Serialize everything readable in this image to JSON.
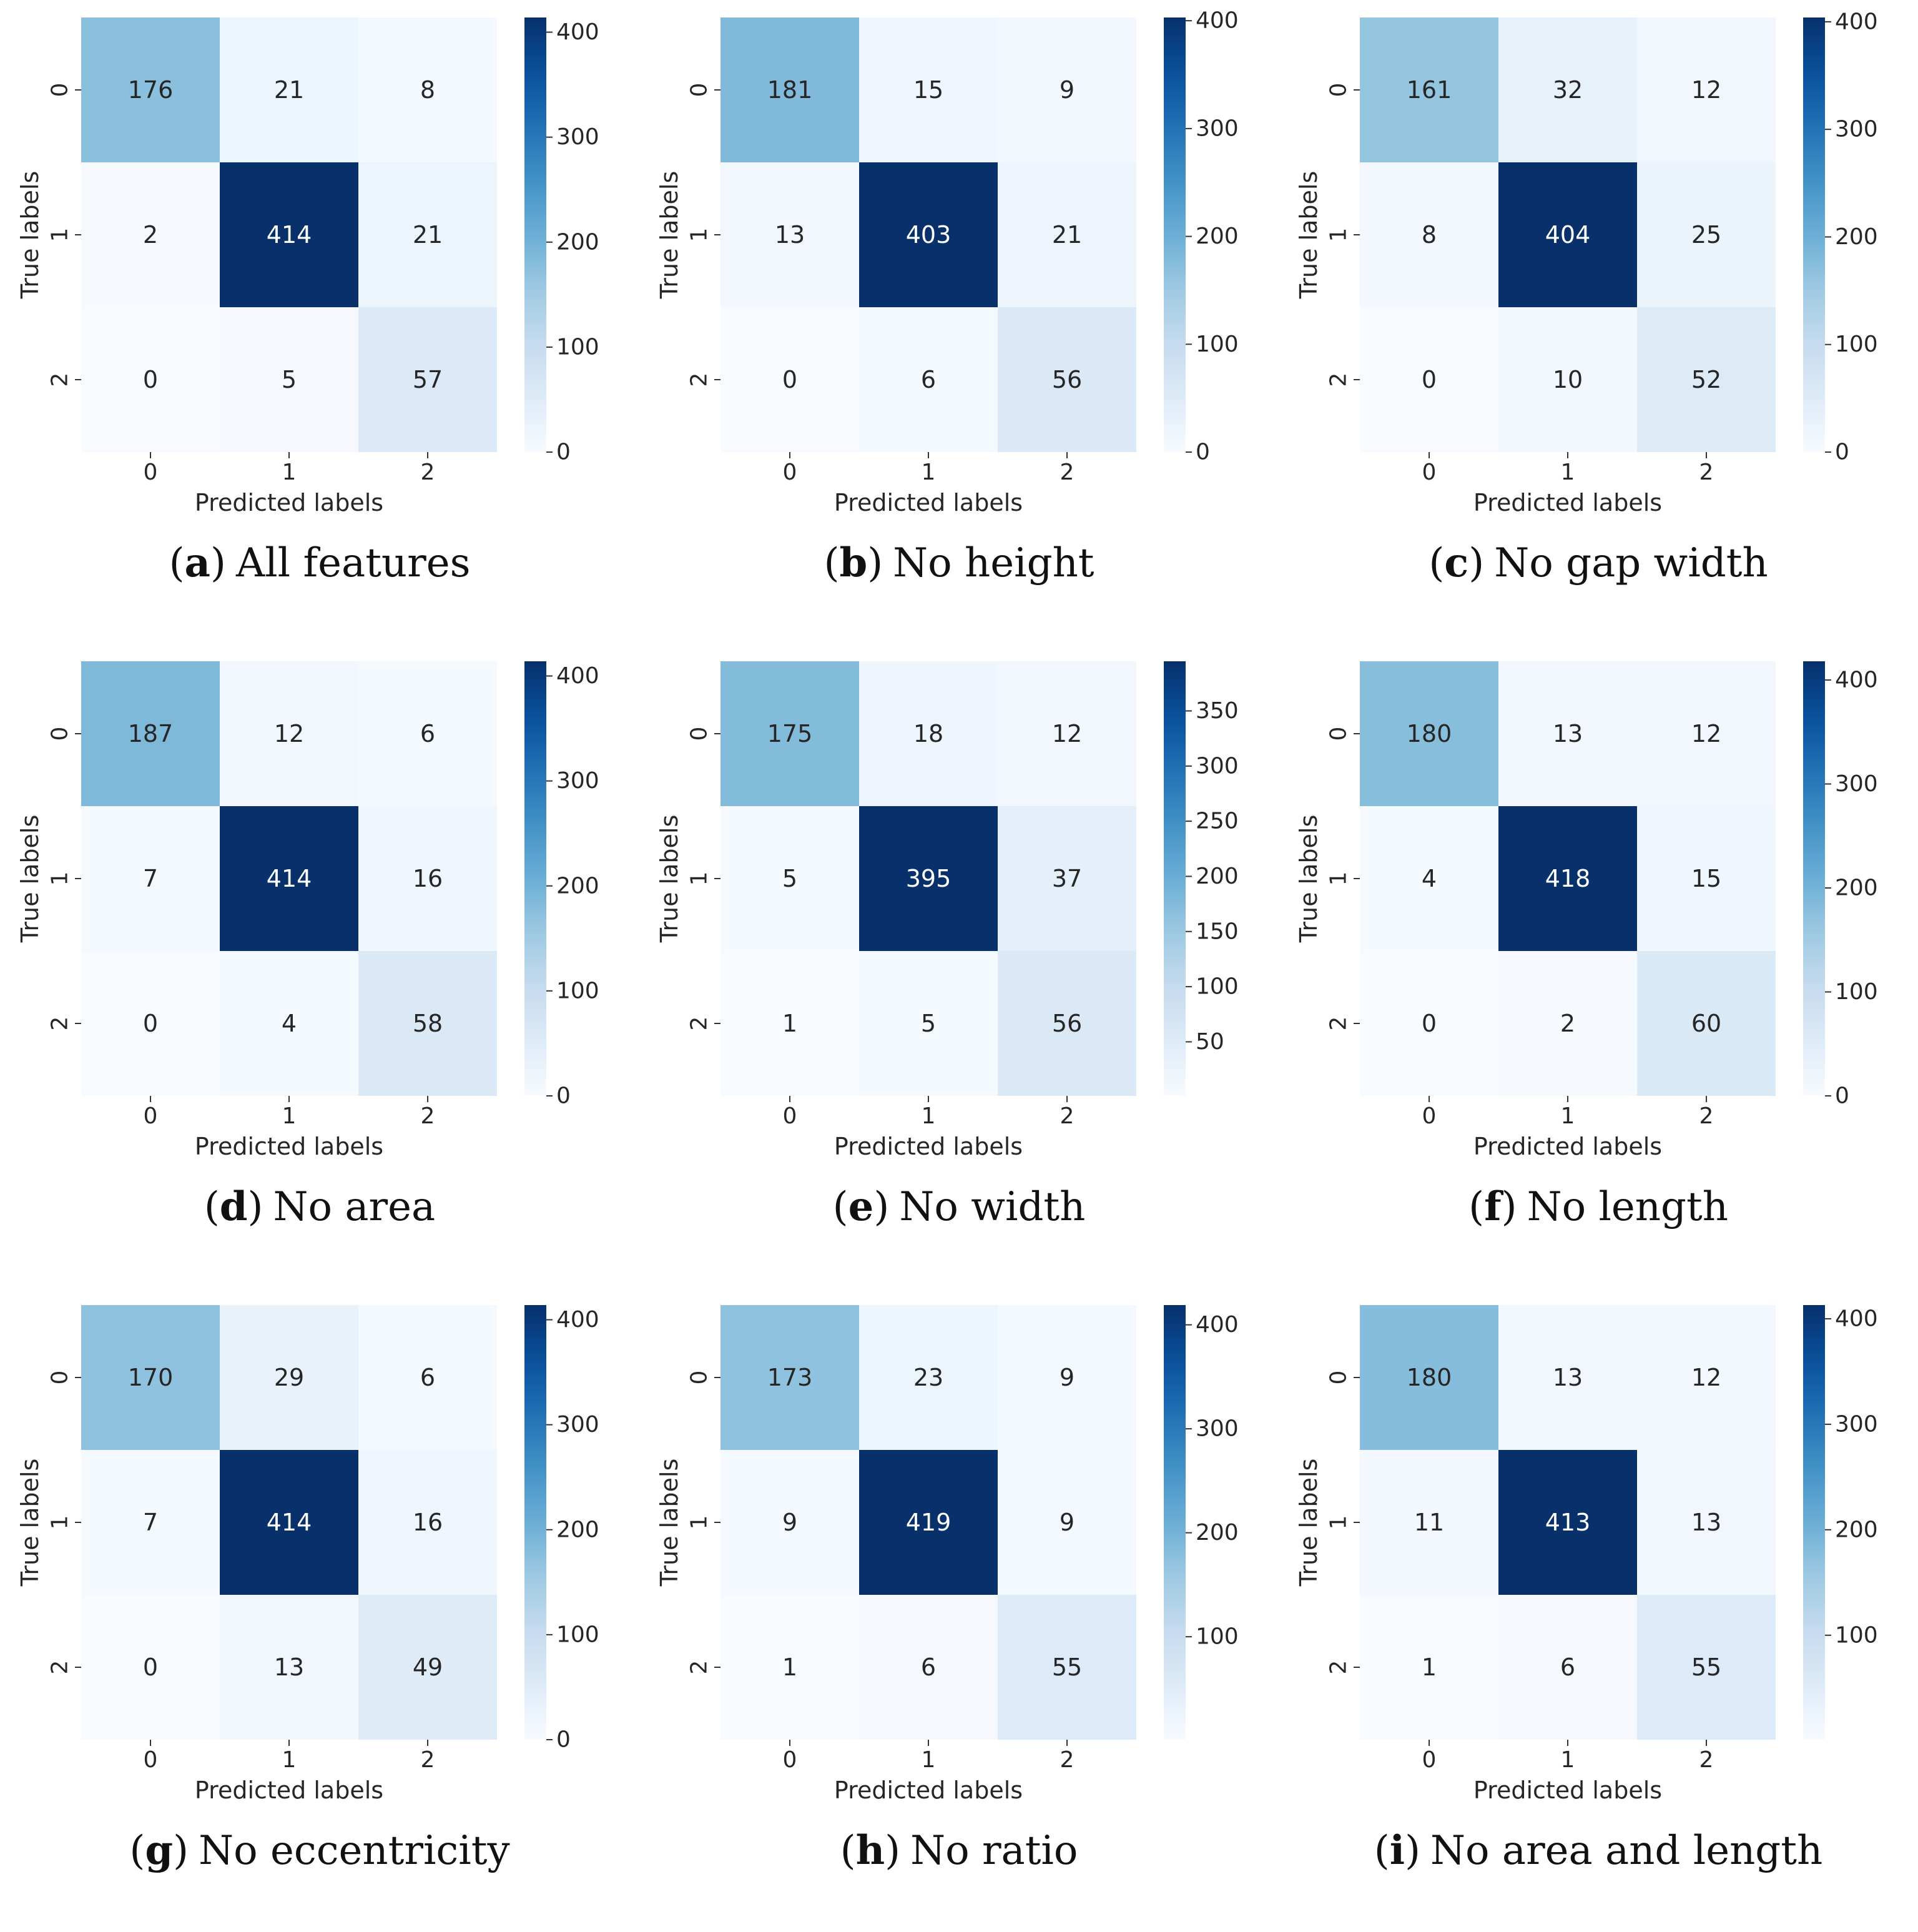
{
  "chart_data": [
    {
      "type": "heatmap",
      "panel_label": "a",
      "title": "All features",
      "xlabel": "Predicted labels",
      "ylabel": "True labels",
      "x_tick_labels": [
        "0",
        "1",
        "2"
      ],
      "y_tick_labels": [
        "0",
        "1",
        "2"
      ],
      "matrix": [
        [
          176,
          21,
          8
        ],
        [
          2,
          414,
          21
        ],
        [
          0,
          5,
          57
        ]
      ],
      "colormap": "Blues",
      "colorbar": {
        "range": [
          0,
          414
        ],
        "ticks": [
          0,
          100,
          200,
          300,
          400
        ]
      }
    },
    {
      "type": "heatmap",
      "panel_label": "b",
      "title": "No height",
      "xlabel": "Predicted labels",
      "ylabel": "True labels",
      "x_tick_labels": [
        "0",
        "1",
        "2"
      ],
      "y_tick_labels": [
        "0",
        "1",
        "2"
      ],
      "matrix": [
        [
          181,
          15,
          9
        ],
        [
          13,
          403,
          21
        ],
        [
          0,
          6,
          56
        ]
      ],
      "colormap": "Blues",
      "colorbar": {
        "range": [
          0,
          403
        ],
        "ticks": [
          0,
          100,
          200,
          300,
          400
        ]
      }
    },
    {
      "type": "heatmap",
      "panel_label": "c",
      "title": "No gap width",
      "xlabel": "Predicted labels",
      "ylabel": "True labels",
      "x_tick_labels": [
        "0",
        "1",
        "2"
      ],
      "y_tick_labels": [
        "0",
        "1",
        "2"
      ],
      "matrix": [
        [
          161,
          32,
          12
        ],
        [
          8,
          404,
          25
        ],
        [
          0,
          10,
          52
        ]
      ],
      "colormap": "Blues",
      "colorbar": {
        "range": [
          0,
          404
        ],
        "ticks": [
          0,
          100,
          200,
          300,
          400
        ]
      }
    },
    {
      "type": "heatmap",
      "panel_label": "d",
      "title": "No area",
      "xlabel": "Predicted labels",
      "ylabel": "True labels",
      "x_tick_labels": [
        "0",
        "1",
        "2"
      ],
      "y_tick_labels": [
        "0",
        "1",
        "2"
      ],
      "matrix": [
        [
          187,
          12,
          6
        ],
        [
          7,
          414,
          16
        ],
        [
          0,
          4,
          58
        ]
      ],
      "colormap": "Blues",
      "colorbar": {
        "range": [
          0,
          414
        ],
        "ticks": [
          0,
          100,
          200,
          300,
          400
        ]
      }
    },
    {
      "type": "heatmap",
      "panel_label": "e",
      "title": "No width",
      "xlabel": "Predicted labels",
      "ylabel": "True labels",
      "x_tick_labels": [
        "0",
        "1",
        "2"
      ],
      "y_tick_labels": [
        "0",
        "1",
        "2"
      ],
      "matrix": [
        [
          175,
          18,
          12
        ],
        [
          5,
          395,
          37
        ],
        [
          1,
          5,
          56
        ]
      ],
      "colormap": "Blues",
      "colorbar": {
        "range": [
          1,
          395
        ],
        "ticks": [
          50,
          100,
          150,
          200,
          250,
          300,
          350
        ]
      }
    },
    {
      "type": "heatmap",
      "panel_label": "f",
      "title": "No length",
      "xlabel": "Predicted labels",
      "ylabel": "True labels",
      "x_tick_labels": [
        "0",
        "1",
        "2"
      ],
      "y_tick_labels": [
        "0",
        "1",
        "2"
      ],
      "matrix": [
        [
          180,
          13,
          12
        ],
        [
          4,
          418,
          15
        ],
        [
          0,
          2,
          60
        ]
      ],
      "colormap": "Blues",
      "colorbar": {
        "range": [
          0,
          418
        ],
        "ticks": [
          0,
          100,
          200,
          300,
          400
        ]
      }
    },
    {
      "type": "heatmap",
      "panel_label": "g",
      "title": "No eccentricity",
      "xlabel": "Predicted labels",
      "ylabel": "True labels",
      "x_tick_labels": [
        "0",
        "1",
        "2"
      ],
      "y_tick_labels": [
        "0",
        "1",
        "2"
      ],
      "matrix": [
        [
          170,
          29,
          6
        ],
        [
          7,
          414,
          16
        ],
        [
          0,
          13,
          49
        ]
      ],
      "colormap": "Blues",
      "colorbar": {
        "range": [
          0,
          414
        ],
        "ticks": [
          0,
          100,
          200,
          300,
          400
        ]
      }
    },
    {
      "type": "heatmap",
      "panel_label": "h",
      "title": "No ratio",
      "xlabel": "Predicted labels",
      "ylabel": "True labels",
      "x_tick_labels": [
        "0",
        "1",
        "2"
      ],
      "y_tick_labels": [
        "0",
        "1",
        "2"
      ],
      "matrix": [
        [
          173,
          23,
          9
        ],
        [
          9,
          419,
          9
        ],
        [
          1,
          6,
          55
        ]
      ],
      "colormap": "Blues",
      "colorbar": {
        "range": [
          1,
          419
        ],
        "ticks": [
          100,
          200,
          300,
          400
        ]
      }
    },
    {
      "type": "heatmap",
      "panel_label": "i",
      "title": "No area and length",
      "xlabel": "Predicted labels",
      "ylabel": "True labels",
      "x_tick_labels": [
        "0",
        "1",
        "2"
      ],
      "y_tick_labels": [
        "0",
        "1",
        "2"
      ],
      "matrix": [
        [
          180,
          13,
          12
        ],
        [
          11,
          413,
          13
        ],
        [
          1,
          6,
          55
        ]
      ],
      "colormap": "Blues",
      "colorbar": {
        "range": [
          1,
          413
        ],
        "ticks": [
          100,
          200,
          300,
          400
        ]
      }
    }
  ]
}
